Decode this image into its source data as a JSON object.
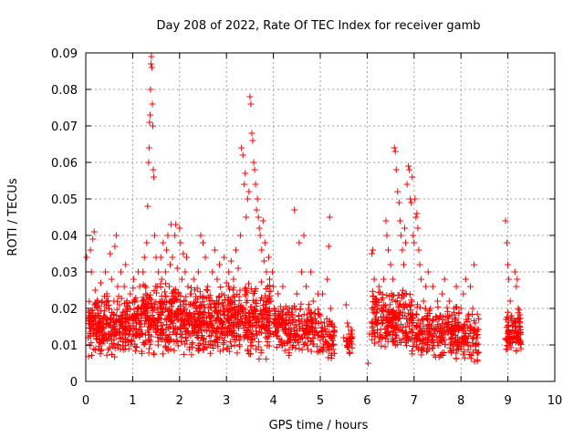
{
  "chart_data": {
    "type": "scatter",
    "title": "Day 208 of 2022, Rate Of TEC Index for receiver gamb",
    "xlabel": "GPS time / hours",
    "ylabel": "ROTI / TECUs",
    "xlim": [
      0,
      10
    ],
    "ylim": [
      0,
      0.09
    ],
    "x_ticks": [
      0,
      1,
      2,
      3,
      4,
      5,
      6,
      7,
      8,
      9,
      10
    ],
    "x_tick_labels": [
      "0",
      "1",
      "2",
      "3",
      "4",
      "5",
      "6",
      "7",
      "8",
      "9",
      "10"
    ],
    "y_ticks": [
      0,
      0.01,
      0.02,
      0.03,
      0.04,
      0.05,
      0.06,
      0.07,
      0.08,
      0.09
    ],
    "y_tick_labels": [
      "0",
      "0.01",
      "0.02",
      "0.03",
      "0.04",
      "0.05",
      "0.06",
      "0.07",
      "0.08",
      "0.09"
    ],
    "grid": true,
    "marker": "plus",
    "series_color": "#ff0000",
    "series": [
      {
        "name": "ROTI",
        "points": [
          [
            0.02,
            0.034
          ],
          [
            0.05,
            0.012
          ],
          [
            0.08,
            0.018
          ],
          [
            0.1,
            0.036
          ],
          [
            0.12,
            0.03
          ],
          [
            0.15,
            0.039
          ],
          [
            0.18,
            0.041
          ],
          [
            0.2,
            0.025
          ],
          [
            0.22,
            0.014
          ],
          [
            0.25,
            0.02
          ],
          [
            0.28,
            0.009
          ],
          [
            0.3,
            0.016
          ],
          [
            0.32,
            0.027
          ],
          [
            0.35,
            0.022
          ],
          [
            0.38,
            0.011
          ],
          [
            0.4,
            0.018
          ],
          [
            0.42,
            0.03
          ],
          [
            0.45,
            0.024
          ],
          [
            0.48,
            0.013
          ],
          [
            0.5,
            0.02
          ],
          [
            0.52,
            0.035
          ],
          [
            0.55,
            0.028
          ],
          [
            0.58,
            0.015
          ],
          [
            0.6,
            0.022
          ],
          [
            0.62,
            0.037
          ],
          [
            0.65,
            0.04
          ],
          [
            0.68,
            0.026
          ],
          [
            0.7,
            0.017
          ],
          [
            0.72,
            0.021
          ],
          [
            0.75,
            0.03
          ],
          [
            0.78,
            0.012
          ],
          [
            0.8,
            0.019
          ],
          [
            0.82,
            0.026
          ],
          [
            0.85,
            0.032
          ],
          [
            0.88,
            0.014
          ],
          [
            0.9,
            0.02
          ],
          [
            0.92,
            0.016
          ],
          [
            0.95,
            0.024
          ],
          [
            0.98,
            0.011
          ],
          [
            1.0,
            0.018
          ],
          [
            1.02,
            0.028
          ],
          [
            1.05,
            0.022
          ],
          [
            1.08,
            0.013
          ],
          [
            1.1,
            0.02
          ],
          [
            1.12,
            0.03
          ],
          [
            1.15,
            0.026
          ],
          [
            1.18,
            0.015
          ],
          [
            1.2,
            0.022
          ],
          [
            1.22,
            0.03
          ],
          [
            1.25,
            0.034
          ],
          [
            1.28,
            0.024
          ],
          [
            1.3,
            0.038
          ],
          [
            1.32,
            0.048
          ],
          [
            1.34,
            0.06
          ],
          [
            1.35,
            0.064
          ],
          [
            1.36,
            0.071
          ],
          [
            1.37,
            0.073
          ],
          [
            1.38,
            0.08
          ],
          [
            1.39,
            0.087
          ],
          [
            1.4,
            0.089
          ],
          [
            1.41,
            0.086
          ],
          [
            1.42,
            0.076
          ],
          [
            1.43,
            0.07
          ],
          [
            1.44,
            0.058
          ],
          [
            1.45,
            0.056
          ],
          [
            1.47,
            0.04
          ],
          [
            1.5,
            0.034
          ],
          [
            1.52,
            0.026
          ],
          [
            1.55,
            0.03
          ],
          [
            1.58,
            0.02
          ],
          [
            1.6,
            0.034
          ],
          [
            1.62,
            0.028
          ],
          [
            1.65,
            0.038
          ],
          [
            1.68,
            0.022
          ],
          [
            1.7,
            0.03
          ],
          [
            1.72,
            0.036
          ],
          [
            1.75,
            0.04
          ],
          [
            1.78,
            0.026
          ],
          [
            1.8,
            0.032
          ],
          [
            1.82,
            0.043
          ],
          [
            1.85,
            0.034
          ],
          [
            1.88,
            0.025
          ],
          [
            1.9,
            0.04
          ],
          [
            1.92,
            0.043
          ],
          [
            1.95,
            0.031
          ],
          [
            1.98,
            0.02
          ],
          [
            2.0,
            0.042
          ],
          [
            2.02,
            0.038
          ],
          [
            2.05,
            0.028
          ],
          [
            2.08,
            0.035
          ],
          [
            2.1,
            0.022
          ],
          [
            2.12,
            0.03
          ],
          [
            2.15,
            0.034
          ],
          [
            2.18,
            0.026
          ],
          [
            2.2,
            0.018
          ],
          [
            2.25,
            0.024
          ],
          [
            2.3,
            0.028
          ],
          [
            2.35,
            0.02
          ],
          [
            2.4,
            0.03
          ],
          [
            2.45,
            0.04
          ],
          [
            2.5,
            0.038
          ],
          [
            2.55,
            0.034
          ],
          [
            2.6,
            0.026
          ],
          [
            2.65,
            0.022
          ],
          [
            2.7,
            0.03
          ],
          [
            2.75,
            0.036
          ],
          [
            2.8,
            0.028
          ],
          [
            2.85,
            0.032
          ],
          [
            2.9,
            0.024
          ],
          [
            2.95,
            0.034
          ],
          [
            3.0,
            0.027
          ],
          [
            3.05,
            0.03
          ],
          [
            3.1,
            0.033
          ],
          [
            3.15,
            0.028
          ],
          [
            3.2,
            0.036
          ],
          [
            3.25,
            0.031
          ],
          [
            3.3,
            0.04
          ],
          [
            3.32,
            0.064
          ],
          [
            3.35,
            0.062
          ],
          [
            3.38,
            0.054
          ],
          [
            3.4,
            0.057
          ],
          [
            3.42,
            0.045
          ],
          [
            3.45,
            0.05
          ],
          [
            3.48,
            0.052
          ],
          [
            3.5,
            0.078
          ],
          [
            3.52,
            0.076
          ],
          [
            3.54,
            0.068
          ],
          [
            3.56,
            0.066
          ],
          [
            3.58,
            0.06
          ],
          [
            3.6,
            0.058
          ],
          [
            3.62,
            0.054
          ],
          [
            3.64,
            0.047
          ],
          [
            3.66,
            0.05
          ],
          [
            3.68,
            0.045
          ],
          [
            3.7,
            0.042
          ],
          [
            3.72,
            0.04
          ],
          [
            3.75,
            0.036
          ],
          [
            3.78,
            0.044
          ],
          [
            3.8,
            0.033
          ],
          [
            3.82,
            0.038
          ],
          [
            3.85,
            0.03
          ],
          [
            3.88,
            0.026
          ],
          [
            3.9,
            0.034
          ],
          [
            3.92,
            0.028
          ],
          [
            3.95,
            0.022
          ],
          [
            3.98,
            0.03
          ],
          [
            4.0,
            0.026
          ],
          [
            4.02,
            0.02
          ],
          [
            4.05,
            0.015
          ],
          [
            4.1,
            0.024
          ],
          [
            4.15,
            0.018
          ],
          [
            4.2,
            0.026
          ],
          [
            4.25,
            0.014
          ],
          [
            4.3,
            0.02
          ],
          [
            4.35,
            0.012
          ],
          [
            4.4,
            0.018
          ],
          [
            4.45,
            0.047
          ],
          [
            4.5,
            0.024
          ],
          [
            4.55,
            0.038
          ],
          [
            4.6,
            0.03
          ],
          [
            4.65,
            0.04
          ],
          [
            4.7,
            0.026
          ],
          [
            4.75,
            0.02
          ],
          [
            4.8,
            0.03
          ],
          [
            4.85,
            0.022
          ],
          [
            4.9,
            0.016
          ],
          [
            4.95,
            0.024
          ],
          [
            5.0,
            0.018
          ],
          [
            5.05,
            0.024
          ],
          [
            5.1,
            0.014
          ],
          [
            5.15,
            0.028
          ],
          [
            5.18,
            0.037
          ],
          [
            5.2,
            0.045
          ],
          [
            5.22,
            0.02
          ],
          [
            5.25,
            0.016
          ],
          [
            5.28,
            0.01
          ],
          [
            5.3,
            0.014
          ],
          [
            5.5,
            0.012
          ],
          [
            5.55,
            0.021
          ],
          [
            5.58,
            0.016
          ],
          [
            5.6,
            0.015
          ],
          [
            5.62,
            0.008
          ],
          [
            5.65,
            0.012
          ],
          [
            5.68,
            0.014
          ],
          [
            6.02,
            0.005
          ],
          [
            6.05,
            0.013
          ],
          [
            6.1,
            0.035
          ],
          [
            6.12,
            0.036
          ],
          [
            6.15,
            0.028
          ],
          [
            6.2,
            0.022
          ],
          [
            6.25,
            0.026
          ],
          [
            6.3,
            0.02
          ],
          [
            6.35,
            0.028
          ],
          [
            6.4,
            0.044
          ],
          [
            6.42,
            0.04
          ],
          [
            6.45,
            0.036
          ],
          [
            6.5,
            0.032
          ],
          [
            6.52,
            0.024
          ],
          [
            6.55,
            0.028
          ],
          [
            6.58,
            0.064
          ],
          [
            6.6,
            0.063
          ],
          [
            6.62,
            0.058
          ],
          [
            6.65,
            0.052
          ],
          [
            6.68,
            0.049
          ],
          [
            6.7,
            0.044
          ],
          [
            6.72,
            0.04
          ],
          [
            6.75,
            0.036
          ],
          [
            6.78,
            0.032
          ],
          [
            6.8,
            0.042
          ],
          [
            6.82,
            0.038
          ],
          [
            6.85,
            0.054
          ],
          [
            6.88,
            0.059
          ],
          [
            6.9,
            0.058
          ],
          [
            6.92,
            0.05
          ],
          [
            6.94,
            0.049
          ],
          [
            6.96,
            0.056
          ],
          [
            6.98,
            0.04
          ],
          [
            7.0,
            0.038
          ],
          [
            7.02,
            0.05
          ],
          [
            7.04,
            0.045
          ],
          [
            7.06,
            0.046
          ],
          [
            7.08,
            0.042
          ],
          [
            7.1,
            0.036
          ],
          [
            7.12,
            0.032
          ],
          [
            7.15,
            0.028
          ],
          [
            7.2,
            0.022
          ],
          [
            7.25,
            0.026
          ],
          [
            7.3,
            0.03
          ],
          [
            7.35,
            0.02
          ],
          [
            7.4,
            0.026
          ],
          [
            7.45,
            0.014
          ],
          [
            7.5,
            0.022
          ],
          [
            7.55,
            0.018
          ],
          [
            7.6,
            0.024
          ],
          [
            7.65,
            0.028
          ],
          [
            7.7,
            0.016
          ],
          [
            7.75,
            0.022
          ],
          [
            7.8,
            0.012
          ],
          [
            7.85,
            0.02
          ],
          [
            7.9,
            0.026
          ],
          [
            7.95,
            0.014
          ],
          [
            8.0,
            0.02
          ],
          [
            8.05,
            0.024
          ],
          [
            8.1,
            0.028
          ],
          [
            8.15,
            0.018
          ],
          [
            8.2,
            0.026
          ],
          [
            8.25,
            0.02
          ],
          [
            8.28,
            0.032
          ],
          [
            8.3,
            0.014
          ],
          [
            8.32,
            0.01
          ],
          [
            8.35,
            0.012
          ],
          [
            8.38,
            0.008
          ],
          [
            8.95,
            0.044
          ],
          [
            8.98,
            0.038
          ],
          [
            9.0,
            0.032
          ],
          [
            9.02,
            0.028
          ],
          [
            9.05,
            0.022
          ],
          [
            9.08,
            0.018
          ],
          [
            9.1,
            0.014
          ],
          [
            9.12,
            0.012
          ],
          [
            9.15,
            0.03
          ],
          [
            9.18,
            0.026
          ],
          [
            9.2,
            0.028
          ],
          [
            9.22,
            0.02
          ],
          [
            9.25,
            0.016
          ],
          [
            9.27,
            0.011
          ]
        ],
        "dense_bands": [
          {
            "x": [
              0.05,
              0.98
            ],
            "y": [
              0.006,
              0.024
            ],
            "count": 260
          },
          {
            "x": [
              1.0,
              1.98
            ],
            "y": [
              0.006,
              0.028
            ],
            "count": 300
          },
          {
            "x": [
              2.0,
              2.98
            ],
            "y": [
              0.006,
              0.027
            ],
            "count": 300
          },
          {
            "x": [
              3.0,
              3.95
            ],
            "y": [
              0.006,
              0.028
            ],
            "count": 300
          },
          {
            "x": [
              4.0,
              4.98
            ],
            "y": [
              0.007,
              0.022
            ],
            "count": 220
          },
          {
            "x": [
              5.0,
              5.3
            ],
            "y": [
              0.006,
              0.018
            ],
            "count": 60
          },
          {
            "x": [
              5.55,
              5.7
            ],
            "y": [
              0.006,
              0.015
            ],
            "count": 25
          },
          {
            "x": [
              6.1,
              6.98
            ],
            "y": [
              0.006,
              0.026
            ],
            "count": 240
          },
          {
            "x": [
              7.0,
              7.98
            ],
            "y": [
              0.005,
              0.022
            ],
            "count": 240
          },
          {
            "x": [
              8.0,
              8.38
            ],
            "y": [
              0.005,
              0.02
            ],
            "count": 80
          },
          {
            "x": [
              8.95,
              9.28
            ],
            "y": [
              0.007,
              0.02
            ],
            "count": 90
          }
        ]
      }
    ]
  }
}
